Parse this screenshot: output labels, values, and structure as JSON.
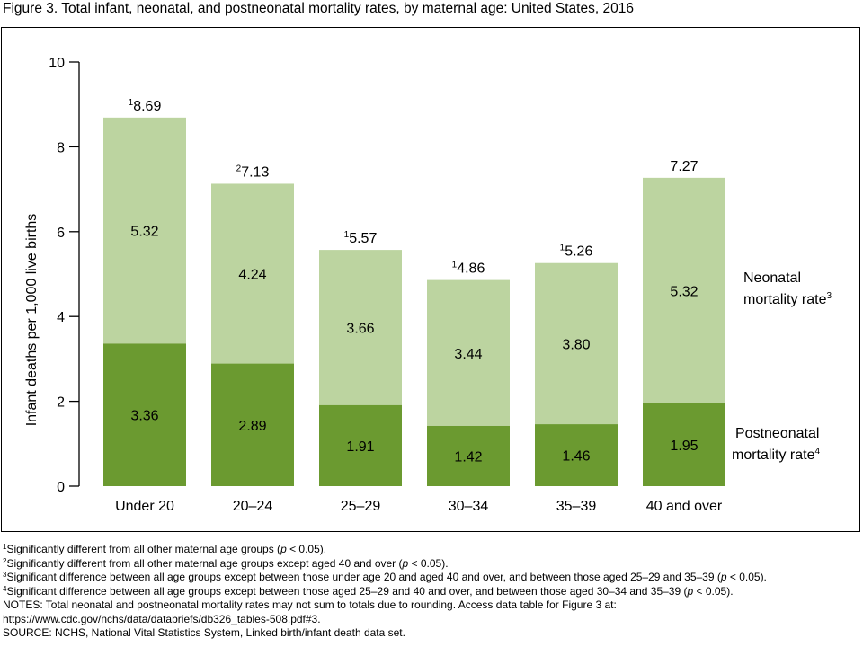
{
  "figure_title": "Figure 3. Total infant, neonatal, and postneonatal mortality rates, by maternal age: United States, 2016",
  "colors": {
    "neonatal": "#bcd4a0",
    "postneonatal": "#6b9a30",
    "axis": "#000000"
  },
  "chart_data": {
    "type": "bar",
    "stacked": true,
    "categories": [
      "Under 20",
      "20–24",
      "25–29",
      "30–34",
      "35–39",
      "40 and over"
    ],
    "series": [
      {
        "name": "Postneonatal mortality rate",
        "footnote": "4",
        "values": [
          3.36,
          2.89,
          1.91,
          1.42,
          1.46,
          1.95
        ]
      },
      {
        "name": "Neonatal mortality rate",
        "footnote": "3",
        "values": [
          5.32,
          4.24,
          3.66,
          3.44,
          3.8,
          5.32
        ]
      }
    ],
    "totals": [
      8.69,
      7.13,
      5.57,
      4.86,
      5.26,
      7.27
    ],
    "totals_labels": [
      "8.69",
      "7.13",
      "5.57",
      "4.86",
      "5.26",
      "7.27"
    ],
    "totals_footnotes": [
      "1",
      "2",
      "1",
      "1",
      "1",
      ""
    ],
    "postneonatal_labels": [
      "3.36",
      "2.89",
      "1.91",
      "1.42",
      "1.46",
      "1.95"
    ],
    "neonatal_labels": [
      "5.32",
      "4.24",
      "3.66",
      "3.44",
      "3.80",
      "5.32"
    ],
    "ylabel": "Infant deaths per 1,000 live births",
    "xlabel": "",
    "ylim": [
      0,
      10
    ],
    "yticks": [
      "0",
      "2",
      "4",
      "6",
      "8",
      "10"
    ],
    "legend_placement": "right",
    "legend": {
      "neonatal": {
        "line1": "Neonatal",
        "line2": "mortality rate",
        "sup": "3"
      },
      "postneonatal": {
        "line1": "Postneonatal",
        "line2": "mortality rate",
        "sup": "4"
      }
    },
    "grid": false
  },
  "notes": {
    "fn1": {
      "sup": "1",
      "pre": "Significantly different from all other maternal age groups (",
      "p": "p",
      "post": " < 0.05)."
    },
    "fn2": {
      "sup": "2",
      "pre": "Significantly different from all other maternal age groups except aged 40 and over (",
      "p": "p",
      "post": " < 0.05)."
    },
    "fn3": {
      "sup": "3",
      "pre": "Significant difference between all age groups except between those under age 20 and aged 40 and over, and between those aged 25–29 and 35–39 (",
      "p": "p",
      "post": " < 0.05)."
    },
    "fn4": {
      "sup": "4",
      "pre": "Significant difference between all age groups except between those aged 25–29 and 40 and over, and between those aged 30–34 and 35–39 (",
      "p": "p",
      "post": " < 0.05)."
    },
    "notes_line1": "NOTES: Total neonatal and postneonatal mortality rates may not sum to totals due to rounding. Access data table for Figure 3 at:",
    "notes_line2": "https://www.cdc.gov/nchs/data/databriefs/db326_tables-508.pdf#3.",
    "source": "SOURCE: NCHS, National Vital Statistics System, Linked birth/infant death data set."
  }
}
